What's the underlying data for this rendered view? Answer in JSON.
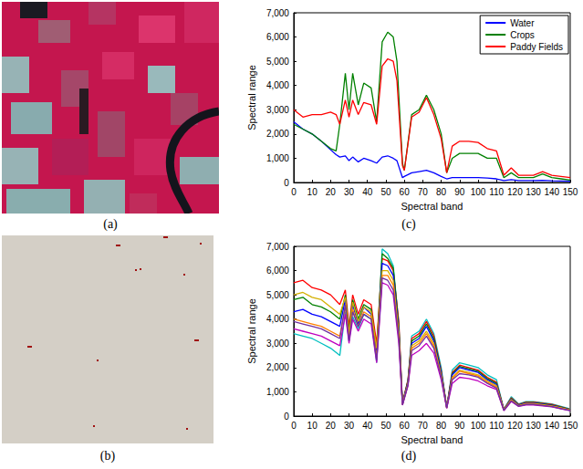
{
  "panel_labels": [
    "(a)",
    "(b)",
    "(c)",
    "(d)"
  ],
  "chart_data": [
    {
      "type": "line",
      "xlabel": "Spectral band",
      "ylabel": "Spectral range",
      "xlim": [
        0,
        150
      ],
      "xticks": [
        0,
        10,
        20,
        30,
        40,
        50,
        60,
        70,
        80,
        90,
        100,
        110,
        120,
        130,
        140,
        150
      ],
      "ylim": [
        0,
        7000
      ],
      "yticks": [
        0,
        1000,
        2000,
        3000,
        4000,
        5000,
        6000,
        7000
      ],
      "grid": false,
      "legend": "upper right",
      "x": [
        0,
        5,
        10,
        15,
        20,
        23,
        25,
        28,
        30,
        32,
        35,
        38,
        42,
        45,
        48,
        51,
        54,
        56,
        59,
        60,
        64,
        68,
        72,
        76,
        80,
        83,
        86,
        90,
        95,
        100,
        105,
        110,
        114,
        118,
        122,
        126,
        130,
        135,
        140,
        145,
        150
      ],
      "series": [
        {
          "name": "Water",
          "color": "#0000ff",
          "values": [
            2500,
            2200,
            2000,
            1700,
            1350,
            1150,
            1050,
            1100,
            900,
            1050,
            850,
            1000,
            900,
            800,
            1050,
            1100,
            1000,
            900,
            200,
            250,
            400,
            450,
            500,
            400,
            250,
            150,
            200,
            200,
            200,
            200,
            180,
            150,
            80,
            120,
            80,
            80,
            80,
            90,
            70,
            60,
            50
          ]
        },
        {
          "name": "Crops",
          "color": "#008000",
          "values": [
            2400,
            2200,
            2000,
            1700,
            1400,
            1300,
            2400,
            4500,
            3000,
            4500,
            3200,
            4100,
            3900,
            2500,
            5800,
            6200,
            6000,
            5000,
            800,
            500,
            2800,
            3000,
            3600,
            3000,
            2000,
            400,
            1000,
            1200,
            1200,
            1200,
            1000,
            1000,
            200,
            400,
            200,
            200,
            200,
            350,
            200,
            150,
            100
          ]
        },
        {
          "name": "Paddy Fields",
          "color": "#ff0000",
          "values": [
            3000,
            2700,
            2800,
            2800,
            2900,
            2800,
            2400,
            3400,
            2700,
            3400,
            2800,
            3300,
            3200,
            2400,
            4800,
            5100,
            5000,
            4200,
            700,
            500,
            2700,
            2900,
            3500,
            2800,
            1800,
            400,
            1500,
            1700,
            1700,
            1650,
            1400,
            1300,
            300,
            600,
            300,
            300,
            300,
            450,
            300,
            250,
            200
          ]
        }
      ]
    },
    {
      "type": "line",
      "xlabel": "Spectral band",
      "ylabel": "Spectral range",
      "xlim": [
        0,
        150
      ],
      "xticks": [
        0,
        10,
        20,
        30,
        40,
        50,
        60,
        70,
        80,
        90,
        100,
        110,
        120,
        130,
        140,
        150
      ],
      "ylim": [
        0,
        7000
      ],
      "yticks": [
        0,
        1000,
        2000,
        3000,
        4000,
        5000,
        6000,
        7000
      ],
      "grid": false,
      "x": [
        0,
        5,
        10,
        15,
        20,
        25,
        28,
        30,
        32,
        35,
        38,
        42,
        45,
        48,
        51,
        54,
        57,
        59,
        62,
        64,
        68,
        72,
        76,
        80,
        83,
        86,
        90,
        95,
        100,
        105,
        110,
        114,
        118,
        122,
        126,
        130,
        135,
        140,
        145,
        150
      ],
      "series": [
        {
          "color": "#00bfbf",
          "values": [
            3400,
            3300,
            3200,
            3000,
            2800,
            2500,
            4300,
            3100,
            4100,
            3600,
            4200,
            4000,
            2200,
            6900,
            6700,
            6200,
            3800,
            500,
            1500,
            3300,
            3500,
            4000,
            3400,
            2000,
            350,
            1900,
            2200,
            2100,
            2000,
            1700,
            1500,
            280,
            800,
            500,
            600,
            600,
            550,
            500,
            400,
            300
          ]
        },
        {
          "color": "#ff0000",
          "values": [
            5500,
            5600,
            5300,
            5200,
            5000,
            4600,
            5200,
            3700,
            5000,
            4200,
            4800,
            4600,
            3000,
            6500,
            6400,
            6000,
            3900,
            550,
            1500,
            3200,
            3400,
            3900,
            3300,
            1900,
            380,
            1800,
            2100,
            2000,
            1900,
            1600,
            1400,
            280,
            750,
            480,
            580,
            580,
            530,
            480,
            380,
            280
          ]
        },
        {
          "color": "#008000",
          "values": [
            4800,
            4900,
            4600,
            4500,
            4300,
            4000,
            5000,
            3500,
            4800,
            4000,
            4600,
            4400,
            2700,
            6700,
            6500,
            6100,
            3700,
            520,
            1450,
            3100,
            3300,
            3800,
            3200,
            1850,
            360,
            1750,
            2050,
            1950,
            1850,
            1550,
            1350,
            270,
            720,
            460,
            560,
            560,
            510,
            460,
            370,
            270
          ]
        },
        {
          "color": "#0000ff",
          "values": [
            4300,
            4400,
            4200,
            4100,
            3900,
            3700,
            4800,
            3300,
            4600,
            3800,
            4500,
            4200,
            2500,
            6300,
            6200,
            5800,
            3500,
            500,
            1400,
            3000,
            3200,
            3700,
            3100,
            1800,
            350,
            1700,
            2000,
            1900,
            1800,
            1500,
            1300,
            260,
            700,
            450,
            540,
            540,
            490,
            440,
            350,
            260
          ]
        },
        {
          "color": "#d4b000",
          "values": [
            5000,
            5100,
            4900,
            4800,
            4500,
            4200,
            4900,
            3400,
            4700,
            3900,
            4500,
            4300,
            2800,
            6000,
            6000,
            5600,
            3400,
            480,
            1350,
            2900,
            3100,
            3500,
            3000,
            1700,
            340,
            1600,
            1900,
            1800,
            1700,
            1450,
            1250,
            250,
            680,
            430,
            520,
            520,
            470,
            420,
            340,
            250
          ]
        },
        {
          "color": "#ff8000",
          "values": [
            4000,
            3900,
            3800,
            3700,
            3500,
            3300,
            4500,
            3200,
            4400,
            3700,
            4300,
            4100,
            2400,
            5800,
            5800,
            5400,
            3300,
            470,
            1300,
            2800,
            3000,
            3400,
            2900,
            1650,
            330,
            1550,
            1850,
            1750,
            1650,
            1400,
            1200,
            240,
            650,
            420,
            500,
            500,
            450,
            400,
            320,
            240
          ]
        },
        {
          "color": "#bf00bf",
          "values": [
            3600,
            3500,
            3400,
            3300,
            3100,
            2900,
            4200,
            3000,
            4000,
            3500,
            4000,
            3800,
            2200,
            5500,
            5400,
            5000,
            3000,
            450,
            1250,
            2500,
            2700,
            3000,
            2600,
            1500,
            320,
            1350,
            1600,
            1550,
            1450,
            1250,
            1100,
            220,
            600,
            400,
            460,
            460,
            420,
            380,
            300,
            220
          ]
        },
        {
          "color": "#7030a0",
          "values": [
            3900,
            3800,
            3700,
            3600,
            3400,
            3200,
            4600,
            3100,
            4300,
            3700,
            4200,
            4000,
            2300,
            5700,
            5600,
            5200,
            3200,
            460,
            1300,
            2700,
            2900,
            3300,
            2800,
            1600,
            330,
            1500,
            1750,
            1700,
            1600,
            1350,
            1150,
            230,
            630,
            410,
            480,
            480,
            440,
            390,
            310,
            230
          ]
        }
      ]
    }
  ]
}
